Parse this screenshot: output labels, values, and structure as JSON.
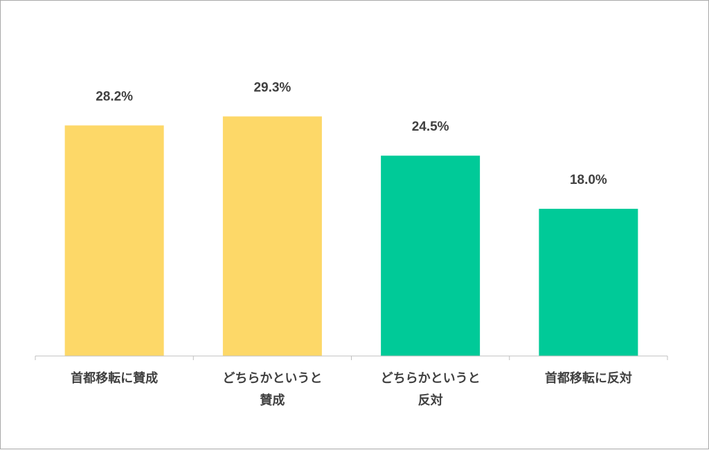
{
  "chart_data": {
    "type": "bar",
    "title": "",
    "xlabel": "",
    "ylabel": "",
    "ylim": [
      0,
      35
    ],
    "grid": false,
    "legend": "none",
    "unit": "%",
    "categories": [
      [
        "首都移転に賛成"
      ],
      [
        "どちらかというと",
        "賛成"
      ],
      [
        "どちらかというと",
        "反対"
      ],
      [
        "首都移転に反対"
      ]
    ],
    "values": [
      28.2,
      29.3,
      24.5,
      18.0
    ],
    "value_labels": [
      "28.2%",
      "29.3%",
      "24.5%",
      "18.0%"
    ],
    "colors": [
      "#fdd868",
      "#fdd868",
      "#00ca98",
      "#00ca98"
    ],
    "axis_color": "#bfbfbf",
    "text_color": "#404040"
  }
}
